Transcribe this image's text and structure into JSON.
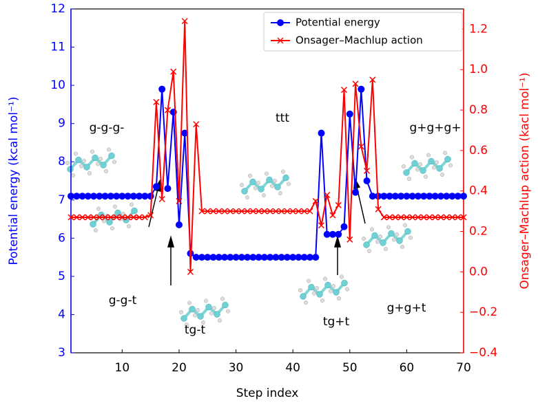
{
  "chart_data": {
    "type": "line",
    "x_label": "Step index",
    "y_label": "Potential energy (kcal mol⁻¹)",
    "y2_label": "Onsager–Machlup action (kacl mol⁻¹)",
    "x": [
      1,
      2,
      3,
      4,
      5,
      6,
      7,
      8,
      9,
      10,
      11,
      12,
      13,
      14,
      15,
      16,
      17,
      18,
      19,
      20,
      21,
      22,
      23,
      24,
      25,
      26,
      27,
      28,
      29,
      30,
      31,
      32,
      33,
      34,
      35,
      36,
      37,
      38,
      39,
      40,
      41,
      42,
      43,
      44,
      45,
      46,
      47,
      48,
      49,
      50,
      51,
      52,
      53,
      54,
      55,
      56,
      57,
      58,
      59,
      60,
      61,
      62,
      63,
      64,
      65,
      66,
      67,
      68,
      69,
      70
    ],
    "xlim": [
      1,
      70
    ],
    "xticks": [
      10,
      20,
      30,
      40,
      50,
      60,
      70
    ],
    "ylim": [
      3,
      12
    ],
    "yticks": [
      3,
      4,
      5,
      6,
      7,
      8,
      9,
      10,
      11,
      12
    ],
    "y2lim": [
      -0.4,
      1.3
    ],
    "y2ticks": [
      {
        "value": -0.4,
        "label": "−0.4"
      },
      {
        "value": -0.2,
        "label": "−0.2"
      },
      {
        "value": 0.0,
        "label": "0.0"
      },
      0.2,
      0.4,
      0.6,
      0.8,
      {
        "value": 1.0,
        "label": "1.0"
      },
      1.2
    ],
    "legend_position": "upper center",
    "series": [
      {
        "name": "Potential energy",
        "color": "#0000ff",
        "marker": "circle",
        "values": [
          7.1,
          7.1,
          7.1,
          7.1,
          7.1,
          7.1,
          7.1,
          7.1,
          7.1,
          7.1,
          7.1,
          7.1,
          7.1,
          7.1,
          7.1,
          7.35,
          9.9,
          7.3,
          9.3,
          6.35,
          8.75,
          5.6,
          5.5,
          5.5,
          5.5,
          5.5,
          5.5,
          5.5,
          5.5,
          5.5,
          5.5,
          5.5,
          5.5,
          5.5,
          5.5,
          5.5,
          5.5,
          5.5,
          5.5,
          5.5,
          5.5,
          5.5,
          5.5,
          5.5,
          8.75,
          6.1,
          6.1,
          6.1,
          6.3,
          9.25,
          7.2,
          9.9,
          7.5,
          7.1,
          7.1,
          7.1,
          7.1,
          7.1,
          7.1,
          7.1,
          7.1,
          7.1,
          7.1,
          7.1,
          7.1,
          7.1,
          7.1,
          7.1,
          7.1,
          7.1
        ]
      },
      {
        "name": "Onsager–Machlup action",
        "color": "#ff0000",
        "marker": "x",
        "axis": "y2",
        "values": [
          0.27,
          0.27,
          0.27,
          0.27,
          0.27,
          0.27,
          0.27,
          0.27,
          0.27,
          0.27,
          0.27,
          0.27,
          0.27,
          0.27,
          0.28,
          0.84,
          0.36,
          0.8,
          0.99,
          0.35,
          1.24,
          0.0,
          0.73,
          0.3,
          0.3,
          0.3,
          0.3,
          0.3,
          0.3,
          0.3,
          0.3,
          0.3,
          0.3,
          0.3,
          0.3,
          0.3,
          0.3,
          0.3,
          0.3,
          0.3,
          0.3,
          0.3,
          0.3,
          0.35,
          0.23,
          0.38,
          0.28,
          0.33,
          0.9,
          0.16,
          0.93,
          0.62,
          0.5,
          0.95,
          0.31,
          0.27,
          0.27,
          0.27,
          0.27,
          0.27,
          0.27,
          0.27,
          0.27,
          0.27,
          0.27,
          0.27,
          0.27,
          0.27,
          0.27,
          0.27
        ]
      }
    ],
    "annotations": [
      "g-g-g-",
      "ttt",
      "g+g+g+",
      "g-g-t",
      "tg-t",
      "tg+t",
      "g+g+t"
    ]
  }
}
